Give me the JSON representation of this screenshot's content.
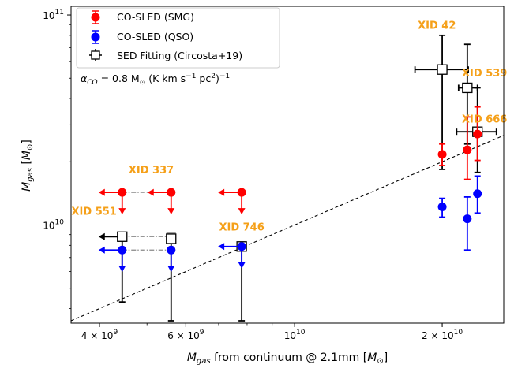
{
  "chart_data": {
    "type": "scatter",
    "xlabel": "M_gas from continuum @ 2.1mm [M_⊙]",
    "ylabel": "M_gas [M_⊙]",
    "xscale": "log",
    "yscale": "log",
    "xlim": [
      3500000000,
      26700000000
    ],
    "ylim": [
      3410000000,
      110000000000
    ],
    "grid": false,
    "legend_position": "top-left",
    "x_ticks": [
      {
        "value": 4000000000,
        "label": "4 × 10^9"
      },
      {
        "value": 6000000000,
        "label": "6 × 10^9"
      },
      {
        "value": 10000000000,
        "label": "10^10"
      },
      {
        "value": 20000000000,
        "label": "2 × 10^10"
      }
    ],
    "y_ticks": [
      {
        "value": 10000000000,
        "label": "10^10"
      },
      {
        "value": 100000000000,
        "label": "10^11"
      }
    ],
    "annotation": "α_CO = 0.8 M_⊙ (K km s^-1 pc^2)^-1",
    "colors": {
      "smg": "#ff0000",
      "qso": "#0000ff",
      "sed": "#000000",
      "label": "#f5a019",
      "connector": "#888888"
    },
    "series": [
      {
        "name": "CO-SLED (SMG)",
        "marker": "circle",
        "color": "#ff0000",
        "points": [
          {
            "x": 4450000000,
            "y": 14300000000,
            "xlimit": "upper",
            "ylimit": "upper",
            "ref_x": 5600000000
          },
          {
            "x": 5600000000,
            "y": 14300000000,
            "xlimit": "upper",
            "ylimit": "upper"
          },
          {
            "x": 7800000000,
            "y": 14300000000,
            "xlimit": "upper",
            "ylimit": "upper"
          },
          {
            "x": 20000000000,
            "y": 21700000000,
            "yerr": [
              19200000000,
              24300000000
            ]
          },
          {
            "x": 22500000000,
            "y": 22800000000,
            "yerr": [
              16500000000,
              32700000000
            ]
          },
          {
            "x": 23600000000,
            "y": 27100000000,
            "yerr": [
              20300000000,
              36500000000
            ]
          }
        ]
      },
      {
        "name": "CO-SLED (QSO)",
        "marker": "circle",
        "color": "#0000ff",
        "points": [
          {
            "x": 4450000000,
            "y": 7600000000,
            "xlimit": "upper",
            "ylimit": "upper",
            "ref_x": 5600000000
          },
          {
            "x": 5600000000,
            "y": 7600000000,
            "ylimit": "upper"
          },
          {
            "x": 7800000000,
            "y": 7900000000,
            "xlimit": "upper",
            "ylimit": "upper"
          },
          {
            "x": 20000000000,
            "y": 12200000000,
            "yerr": [
              10900000000,
              13400000000
            ]
          },
          {
            "x": 22500000000,
            "y": 10700000000,
            "yerr": [
              7600000000,
              13600000000
            ]
          },
          {
            "x": 23600000000,
            "y": 14100000000,
            "yerr": [
              11400000000,
              17100000000
            ]
          }
        ]
      },
      {
        "name": "SED Fitting (Circosta+19)",
        "marker": "square-open",
        "color": "#000000",
        "points": [
          {
            "x": 4450000000,
            "y": 8800000000,
            "xlimit": "upper",
            "yerr": [
              4300000000,
              8800000000
            ],
            "ref_x": 5600000000
          },
          {
            "x": 5600000000,
            "y": 8600000000,
            "yerr": [
              3500000000,
              8600000000
            ]
          },
          {
            "x": 7800000000,
            "y": 7900000000,
            "yerr": [
              3500000000,
              7900000000
            ]
          },
          {
            "x": 20000000000,
            "y": 55000000000,
            "xerr": [
              17600000000,
              22600000000
            ],
            "yerr": [
              18400000000,
              80000000000
            ]
          },
          {
            "x": 22500000000,
            "y": 45000000000,
            "xerr": [
              21600000000,
              23600000000
            ],
            "yerr": [
              24300000000,
              72500000000
            ]
          },
          {
            "x": 23600000000,
            "y": 27800000000,
            "xerr": [
              21400000000,
              25800000000
            ],
            "yerr": [
              17800000000,
              45000000000
            ]
          }
        ]
      }
    ],
    "source_labels": [
      {
        "text": "XID 42",
        "x": 19500000000,
        "y": 86000000000
      },
      {
        "text": "XID 539",
        "x": 24400000000,
        "y": 51000000000
      },
      {
        "text": "XID 666",
        "x": 24400000000,
        "y": 30700000000
      },
      {
        "text": "XID 337",
        "x": 5100000000,
        "y": 17600000000
      },
      {
        "text": "XID 551",
        "x": 3900000000,
        "y": 11200000000
      },
      {
        "text": "XID 746",
        "x": 7800000000,
        "y": 9400000000
      }
    ],
    "one_to_one_line": {
      "style": "dashed",
      "x": [
        3500000000,
        26700000000
      ],
      "y": [
        3500000000,
        26700000000
      ]
    }
  }
}
